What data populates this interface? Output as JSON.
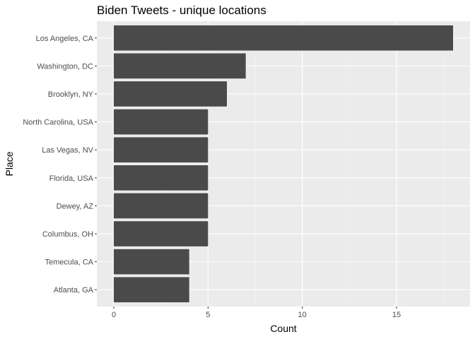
{
  "chart_data": {
    "type": "bar",
    "orientation": "horizontal",
    "title": "Biden Tweets - unique locations",
    "xlabel": "Count",
    "ylabel": "Place",
    "categories": [
      "Los Angeles, CA",
      "Washington, DC",
      "Brooklyn, NY",
      "North Carolina, USA",
      "Las Vegas, NV",
      "Florida, USA",
      "Dewey, AZ",
      "Columbus, OH",
      "Temecula, CA",
      "Atlanta, GA"
    ],
    "values": [
      18,
      7,
      6,
      5,
      5,
      5,
      5,
      5,
      4,
      4
    ],
    "xlim": [
      -0.9,
      18.9
    ],
    "xticks": [
      0,
      5,
      10,
      15
    ],
    "grid": true,
    "legend": "none",
    "colors": {
      "bar": "#4a4a4a",
      "panel": "#ebebeb",
      "grid_major": "#ffffff",
      "grid_minor": "#f5f5f5",
      "text": "#4d4d4d",
      "tick": "#333333"
    }
  }
}
